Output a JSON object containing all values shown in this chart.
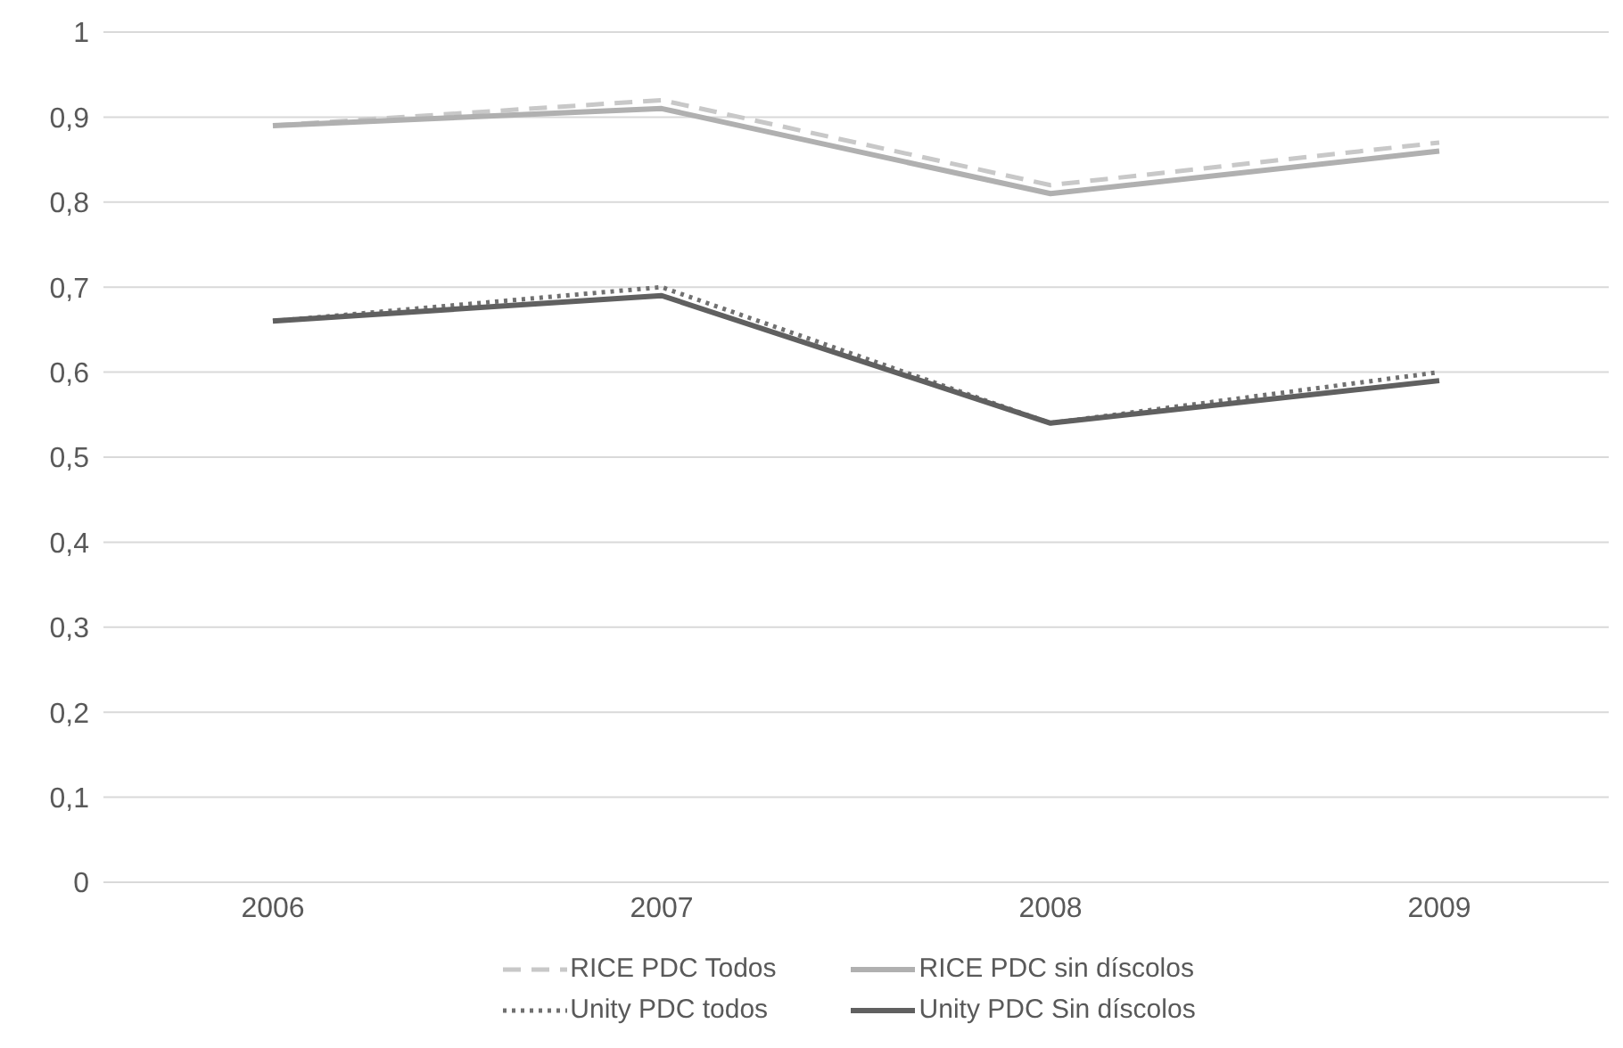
{
  "chart_data": {
    "type": "line",
    "categories": [
      "2006",
      "2007",
      "2008",
      "2009"
    ],
    "series": [
      {
        "name": "RICE PDC Todos",
        "color": "#c8c8c8",
        "line_style": "dashed",
        "values": [
          0.89,
          0.92,
          0.82,
          0.87
        ]
      },
      {
        "name": "RICE PDC sin díscolos",
        "color": "#b0b0b0",
        "line_style": "solid",
        "values": [
          0.89,
          0.91,
          0.81,
          0.86
        ]
      },
      {
        "name": "Unity PDC todos",
        "color": "#707070",
        "line_style": "dotted",
        "values": [
          0.66,
          0.7,
          0.54,
          0.6
        ]
      },
      {
        "name": "Unity PDC Sin díscolos",
        "color": "#606060",
        "line_style": "solid",
        "values": [
          0.66,
          0.69,
          0.54,
          0.59
        ]
      }
    ],
    "ylim": [
      0,
      1
    ],
    "yticks": [
      {
        "value": 0,
        "label": "0"
      },
      {
        "value": 0.1,
        "label": "0,1"
      },
      {
        "value": 0.2,
        "label": "0,2"
      },
      {
        "value": 0.3,
        "label": "0,3"
      },
      {
        "value": 0.4,
        "label": "0,4"
      },
      {
        "value": 0.5,
        "label": "0,5"
      },
      {
        "value": 0.6,
        "label": "0,6"
      },
      {
        "value": 0.7,
        "label": "0,7"
      },
      {
        "value": 0.8,
        "label": "0,8"
      },
      {
        "value": 0.9,
        "label": "0,9"
      },
      {
        "value": 1,
        "label": "1"
      }
    ],
    "grid": "y",
    "legend": "bottom",
    "marker": "none"
  }
}
